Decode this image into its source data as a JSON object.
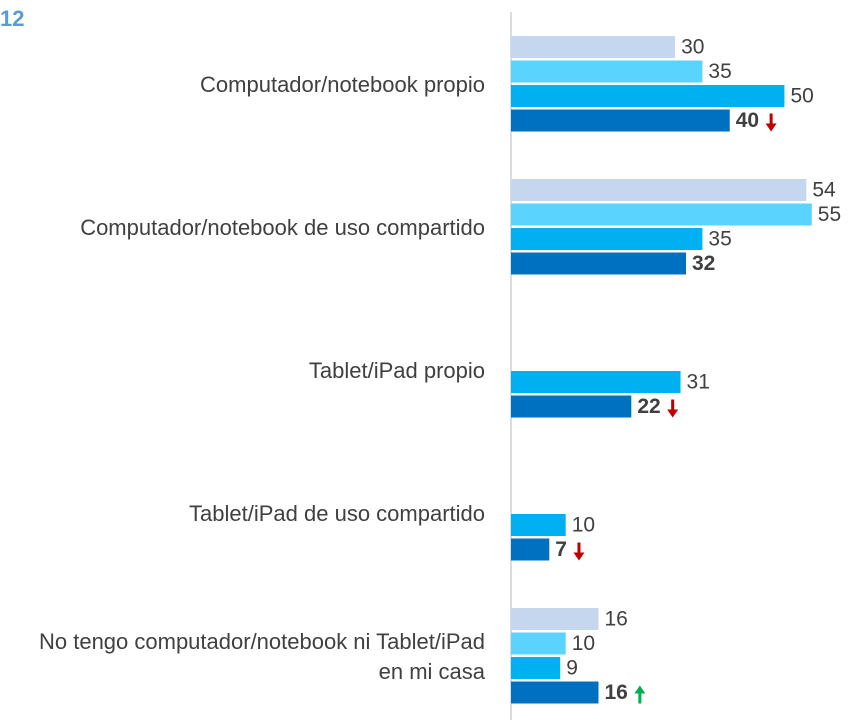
{
  "chart_data": {
    "type": "bar",
    "orientation": "horizontal",
    "title": "12",
    "categories": [
      "Computador/notebook propio",
      "Computador/notebook de uso compartido",
      "Tablet/iPad propio",
      "Tablet/iPad de uso compartido",
      "No tengo computador/notebook ni Tablet/iPad en mi casa"
    ],
    "series": [
      {
        "color": "#c5d7ef",
        "values": [
          30,
          54,
          null,
          null,
          16
        ]
      },
      {
        "color": "#5bd3ff",
        "values": [
          35,
          55,
          null,
          null,
          10
        ]
      },
      {
        "color": "#00b0f0",
        "values": [
          50,
          35,
          31,
          10,
          9
        ]
      },
      {
        "color": "#0070c0",
        "values": [
          40,
          32,
          22,
          7,
          16
        ],
        "bold_labels": true
      }
    ],
    "trend": [
      "down",
      null,
      "down",
      "down",
      "up"
    ],
    "trend_colors": {
      "down": "#c00000",
      "up": "#00b050"
    },
    "xlim": [
      0,
      64
    ]
  }
}
